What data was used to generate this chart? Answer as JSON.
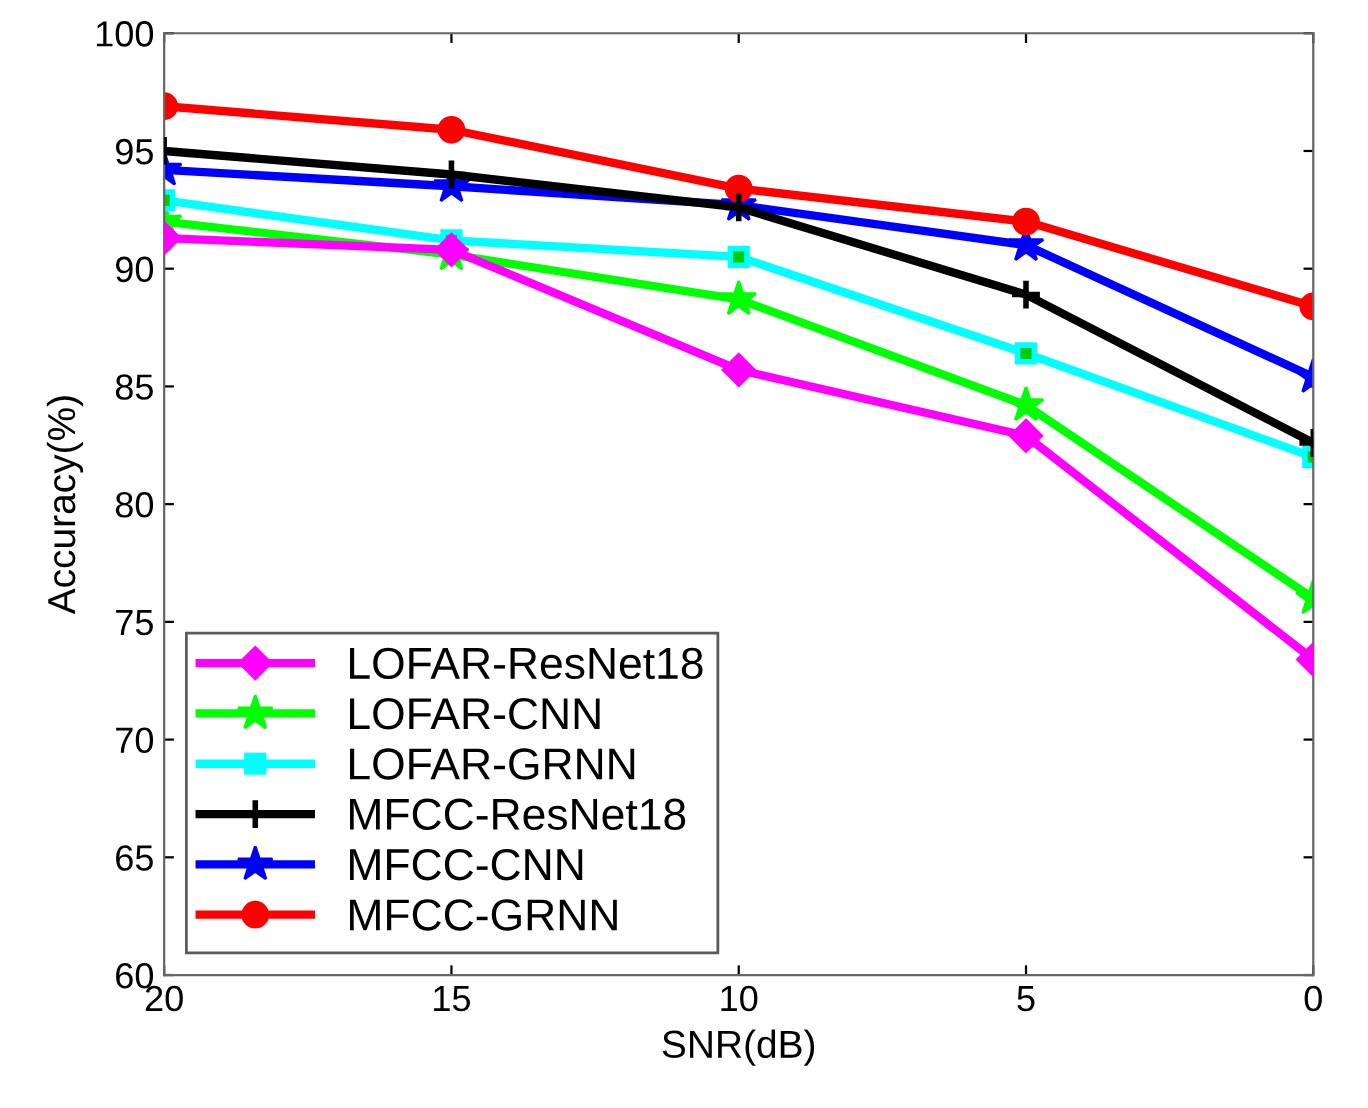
{
  "chart_data": {
    "type": "line",
    "xlabel": "SNR(dB)",
    "ylabel": "Accuracy(%)",
    "x": [
      20,
      15,
      10,
      5,
      0
    ],
    "xlim": [
      20,
      0
    ],
    "xticks": [
      20,
      15,
      10,
      5,
      0
    ],
    "ylim": [
      60,
      100
    ],
    "yticks": [
      60,
      65,
      70,
      75,
      80,
      85,
      90,
      95,
      100
    ],
    "grid": false,
    "legend": "bottom left",
    "line_style": "solid",
    "series": [
      {
        "name": "LOFAR-ResNet18",
        "color": "#ff00ff",
        "marker": "diamond",
        "values": [
          91.3,
          90.8,
          85.7,
          82.9,
          73.4
        ]
      },
      {
        "name": "LOFAR-CNN",
        "color": "#00ff00",
        "marker": "star",
        "values": [
          92.0,
          90.6,
          88.7,
          84.2,
          76.0
        ]
      },
      {
        "name": "LOFAR-GRNN",
        "color": "#00ffff",
        "marker": "square",
        "values": [
          92.9,
          91.2,
          90.5,
          86.4,
          82.0
        ]
      },
      {
        "name": "MFCC-ResNet18",
        "color": "#000000",
        "marker": "cross",
        "values": [
          95.0,
          94.0,
          92.6,
          88.9,
          82.6
        ]
      },
      {
        "name": "MFCC-CNN",
        "color": "#0000ff",
        "marker": "star",
        "values": [
          94.2,
          93.5,
          92.7,
          91.0,
          85.4
        ]
      },
      {
        "name": "MFCC-GRNN",
        "color": "#ff0000",
        "marker": "circle",
        "values": [
          96.9,
          95.9,
          93.4,
          92.0,
          88.4
        ]
      }
    ]
  }
}
